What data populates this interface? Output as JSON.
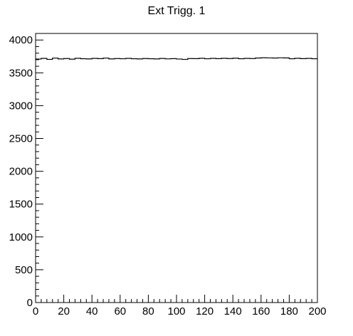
{
  "chart_data": {
    "type": "line",
    "title": "Ext Trigg. 1",
    "xlabel": "",
    "ylabel": "",
    "xlim": [
      0,
      200
    ],
    "ylim": [
      0,
      4100
    ],
    "x_ticks": [
      0,
      20,
      40,
      60,
      80,
      100,
      120,
      140,
      160,
      180,
      200
    ],
    "y_ticks": [
      0,
      500,
      1000,
      1500,
      2000,
      2500,
      3000,
      3500,
      4000
    ],
    "x_tick_labels": [
      "0",
      "20",
      "40",
      "60",
      "80",
      "100",
      "120",
      "140",
      "160",
      "180",
      "200"
    ],
    "y_tick_labels": [
      "0",
      "500",
      "1000",
      "1500",
      "2000",
      "2500",
      "3000",
      "3500",
      "4000"
    ],
    "grid": false,
    "series": [
      {
        "x": [
          0,
          4,
          8,
          12,
          16,
          20,
          24,
          28,
          32,
          36,
          40,
          44,
          48,
          52,
          56,
          60,
          64,
          68,
          72,
          76,
          80,
          84,
          88,
          92,
          96,
          100,
          104,
          108,
          112,
          116,
          120,
          124,
          128,
          132,
          136,
          140,
          144,
          148,
          152,
          156,
          160,
          164,
          168,
          172,
          176,
          180,
          184,
          188,
          192,
          196,
          200
        ],
        "y": [
          3710,
          3720,
          3705,
          3725,
          3712,
          3718,
          3708,
          3722,
          3715,
          3712,
          3720,
          3716,
          3725,
          3712,
          3718,
          3714,
          3720,
          3715,
          3712,
          3718,
          3715,
          3712,
          3719,
          3713,
          3716,
          3710,
          3705,
          3718,
          3716,
          3722,
          3714,
          3720,
          3716,
          3722,
          3718,
          3723,
          3715,
          3720,
          3718,
          3726,
          3730,
          3728,
          3726,
          3729,
          3727,
          3715,
          3722,
          3716,
          3720,
          3715,
          3718
        ]
      }
    ]
  }
}
